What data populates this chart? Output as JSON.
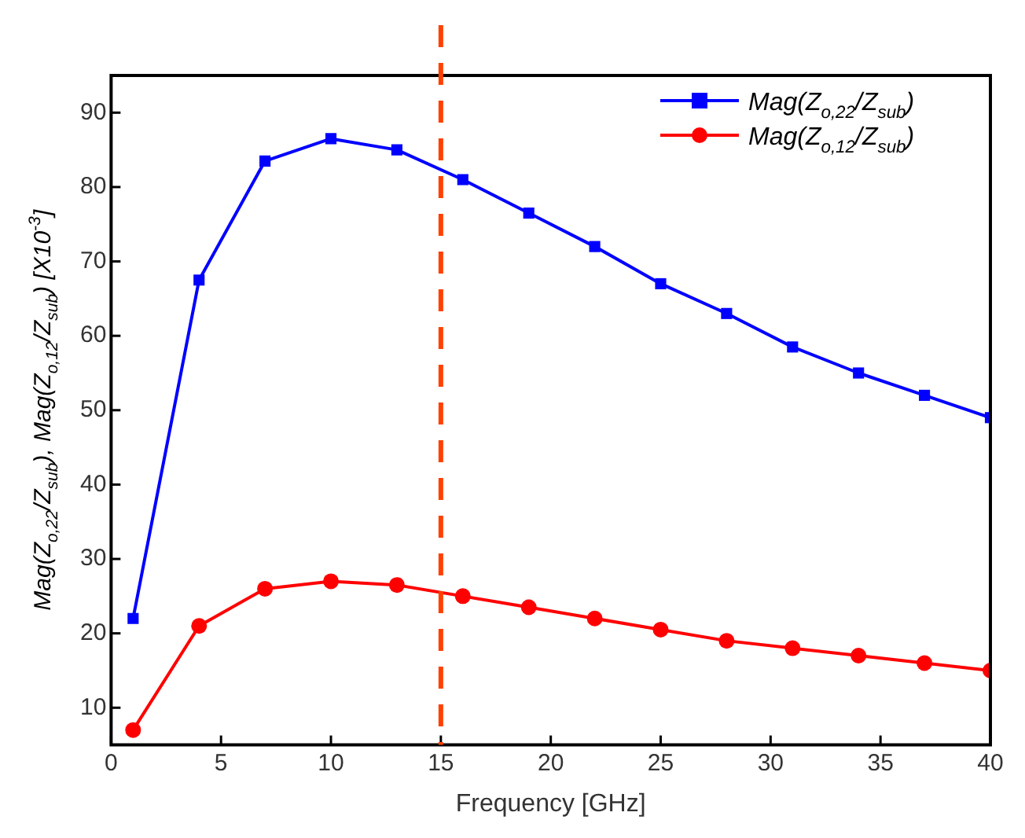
{
  "chart_data": {
    "type": "line",
    "xlabel": "Frequency [GHz]",
    "ylabel": "Mag(Z$_{o,22}$/Z$_{sub}$), Mag(Z$_{o,12}$/Z$_{sub}$) [X10$^{-3}$]",
    "x": [
      1,
      4,
      7,
      10,
      13,
      16,
      19,
      22,
      25,
      28,
      31,
      34,
      37,
      40
    ],
    "series": [
      {
        "name": "Mag(Z$_{o,22}$/Z$_{sub}$)",
        "color": "#0000ff",
        "marker": "square",
        "values": [
          22,
          67.5,
          83.5,
          86.5,
          85,
          81,
          76.5,
          72,
          67,
          63,
          58.5,
          55,
          52,
          49
        ]
      },
      {
        "name": "Mag(Z$_{o,12}$/Z$_{sub}$)",
        "color": "#ff0000",
        "marker": "circle",
        "values": [
          7,
          21,
          26,
          27,
          26.5,
          25,
          23.5,
          22,
          20.5,
          19,
          18,
          17,
          16,
          15
        ]
      }
    ],
    "xlim": [
      0,
      40
    ],
    "xticks": [
      0,
      5,
      10,
      15,
      20,
      25,
      30,
      35,
      40
    ],
    "ylim": [
      5,
      95
    ],
    "yticks": [
      10,
      20,
      30,
      40,
      50,
      60,
      70,
      80,
      90
    ],
    "ref_lines": [
      {
        "axis": "x",
        "value": 15,
        "color": "#ff4000",
        "line_style": "dashed"
      }
    ],
    "legend": "top right",
    "grid": false
  }
}
